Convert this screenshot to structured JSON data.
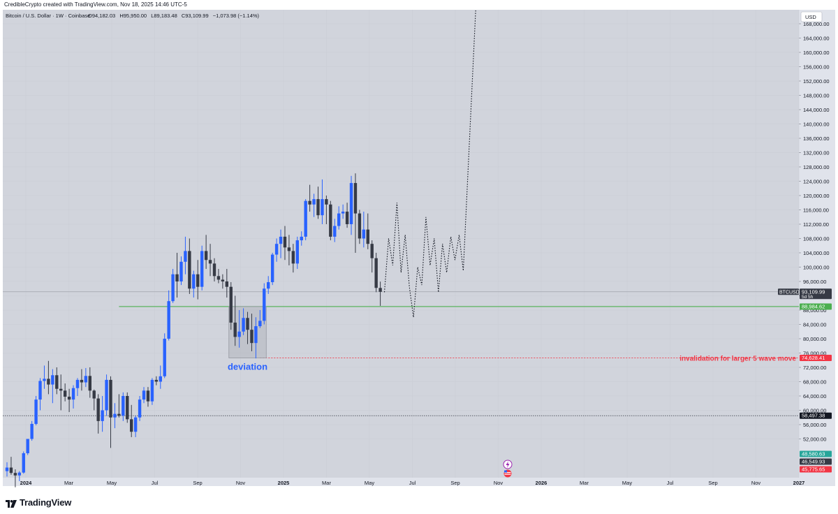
{
  "header": {
    "credit": "CredibleCrypto created with TradingView.com, Nov 18, 2025 14:46 UTC-5"
  },
  "legend": {
    "symbol": "Bitcoin / U.S. Dollar · 1W · Coinbase",
    "o_label": "O",
    "o": "94,182.03",
    "h_label": "H",
    "h": "95,950.00",
    "l_label": "L",
    "l": "89,183.48",
    "c_label": "C",
    "c": "93,109.99",
    "change": "−1,073.98 (−1.14%)"
  },
  "currency": "USD",
  "footer": {
    "brand": "TradingView"
  },
  "colors": {
    "background": "#d1d4dc",
    "up": "#2962ff",
    "down": "#363a45",
    "support_line": "#4caf50",
    "invalidation": "#f23645",
    "deviation_box": "#b2b5be"
  },
  "chart_data": {
    "type": "candlestick",
    "interval": "1W",
    "ylim": [
      44000,
      170000
    ],
    "ytick_labels": [
      "52,000.00",
      "56,000.00",
      "60,000.00",
      "64,000.00",
      "68,000.00",
      "72,000.00",
      "76,000.00",
      "80,000.00",
      "84,000.00",
      "88,000.00",
      "92,000.00",
      "96,000.00",
      "100,000.00",
      "104,000.00",
      "108,000.00",
      "112,000.00",
      "116,000.00",
      "120,000.00",
      "124,000.00",
      "128,000.00",
      "132,000.00",
      "136,000.00",
      "140,000.00",
      "144,000.00",
      "148,000.00",
      "152,000.00",
      "156,000.00",
      "160,000.00",
      "164,000.00",
      "168,000.00"
    ],
    "x_labels": [
      {
        "label": "2024",
        "bold": true
      },
      {
        "label": "Mar"
      },
      {
        "label": "May"
      },
      {
        "label": "Jul"
      },
      {
        "label": "Sep"
      },
      {
        "label": "Nov"
      },
      {
        "label": "2025",
        "bold": true
      },
      {
        "label": "Mar"
      },
      {
        "label": "May"
      },
      {
        "label": "Jul"
      },
      {
        "label": "Sep"
      },
      {
        "label": "Nov"
      },
      {
        "label": "2026",
        "bold": true
      },
      {
        "label": "Mar"
      },
      {
        "label": "May"
      },
      {
        "label": "Jul"
      },
      {
        "label": "Sep"
      },
      {
        "label": "Nov"
      },
      {
        "label": "2027",
        "bold": true
      }
    ],
    "candles": [
      {
        "o": 43000,
        "h": 45500,
        "l": 41500,
        "c": 44000
      },
      {
        "o": 44000,
        "h": 47000,
        "l": 42000,
        "c": 42500
      },
      {
        "o": 42500,
        "h": 43500,
        "l": 38500,
        "c": 41800
      },
      {
        "o": 41800,
        "h": 43000,
        "l": 40200,
        "c": 42600
      },
      {
        "o": 42600,
        "h": 48500,
        "l": 42300,
        "c": 48000
      },
      {
        "o": 48000,
        "h": 52000,
        "l": 47500,
        "c": 52000
      },
      {
        "o": 52000,
        "h": 57000,
        "l": 51500,
        "c": 56200
      },
      {
        "o": 56200,
        "h": 64000,
        "l": 55800,
        "c": 63000
      },
      {
        "o": 63000,
        "h": 69000,
        "l": 60000,
        "c": 68200
      },
      {
        "o": 68200,
        "h": 72500,
        "l": 66000,
        "c": 68800
      },
      {
        "o": 68800,
        "h": 73800,
        "l": 64500,
        "c": 67200
      },
      {
        "o": 67200,
        "h": 71500,
        "l": 62000,
        "c": 69800
      },
      {
        "o": 69800,
        "h": 72000,
        "l": 64500,
        "c": 66000
      },
      {
        "o": 66000,
        "h": 70000,
        "l": 60000,
        "c": 65500
      },
      {
        "o": 65500,
        "h": 67500,
        "l": 62500,
        "c": 63800
      },
      {
        "o": 63800,
        "h": 66000,
        "l": 59500,
        "c": 63000
      },
      {
        "o": 63000,
        "h": 67000,
        "l": 60500,
        "c": 66200
      },
      {
        "o": 66200,
        "h": 69000,
        "l": 64000,
        "c": 68500
      },
      {
        "o": 68500,
        "h": 71500,
        "l": 65500,
        "c": 67800
      },
      {
        "o": 67800,
        "h": 71800,
        "l": 66500,
        "c": 69600
      },
      {
        "o": 69600,
        "h": 72000,
        "l": 63500,
        "c": 65500
      },
      {
        "o": 65500,
        "h": 65800,
        "l": 60000,
        "c": 63300
      },
      {
        "o": 63300,
        "h": 64500,
        "l": 53500,
        "c": 57000
      },
      {
        "o": 57000,
        "h": 64000,
        "l": 54000,
        "c": 60000
      },
      {
        "o": 60000,
        "h": 70000,
        "l": 58500,
        "c": 68500
      },
      {
        "o": 68500,
        "h": 69500,
        "l": 49500,
        "c": 58000
      },
      {
        "o": 58000,
        "h": 62000,
        "l": 55000,
        "c": 59000
      },
      {
        "o": 59000,
        "h": 64500,
        "l": 58000,
        "c": 58500
      },
      {
        "o": 58500,
        "h": 65000,
        "l": 57000,
        "c": 64000
      },
      {
        "o": 64000,
        "h": 65000,
        "l": 56500,
        "c": 57500
      },
      {
        "o": 57500,
        "h": 61500,
        "l": 52500,
        "c": 54000
      },
      {
        "o": 54000,
        "h": 58500,
        "l": 52500,
        "c": 58000
      },
      {
        "o": 58000,
        "h": 64000,
        "l": 57000,
        "c": 63000
      },
      {
        "o": 63000,
        "h": 66500,
        "l": 62000,
        "c": 65500
      },
      {
        "o": 65500,
        "h": 66500,
        "l": 61000,
        "c": 62500
      },
      {
        "o": 62500,
        "h": 69000,
        "l": 61500,
        "c": 68500
      },
      {
        "o": 68500,
        "h": 69500,
        "l": 67000,
        "c": 68000
      },
      {
        "o": 68000,
        "h": 72500,
        "l": 66000,
        "c": 69500
      },
      {
        "o": 69500,
        "h": 81500,
        "l": 69000,
        "c": 80000
      },
      {
        "o": 80000,
        "h": 93500,
        "l": 79500,
        "c": 90500
      },
      {
        "o": 90500,
        "h": 99500,
        "l": 90000,
        "c": 98000
      },
      {
        "o": 98000,
        "h": 104000,
        "l": 91500,
        "c": 96000
      },
      {
        "o": 96000,
        "h": 103000,
        "l": 95000,
        "c": 101500
      },
      {
        "o": 101500,
        "h": 108500,
        "l": 98000,
        "c": 104500
      },
      {
        "o": 104500,
        "h": 108000,
        "l": 92500,
        "c": 94000
      },
      {
        "o": 94000,
        "h": 99000,
        "l": 91500,
        "c": 98000
      },
      {
        "o": 98000,
        "h": 102000,
        "l": 91000,
        "c": 94500
      },
      {
        "o": 94500,
        "h": 106000,
        "l": 93500,
        "c": 104500
      },
      {
        "o": 104500,
        "h": 109000,
        "l": 99500,
        "c": 102000
      },
      {
        "o": 102000,
        "h": 106500,
        "l": 97500,
        "c": 101000
      },
      {
        "o": 101000,
        "h": 102500,
        "l": 96000,
        "c": 97500
      },
      {
        "o": 97500,
        "h": 99500,
        "l": 95500,
        "c": 96500
      },
      {
        "o": 96500,
        "h": 98000,
        "l": 94000,
        "c": 96000
      },
      {
        "o": 96000,
        "h": 99500,
        "l": 91500,
        "c": 94500
      },
      {
        "o": 94500,
        "h": 95800,
        "l": 82500,
        "c": 84500
      },
      {
        "o": 84500,
        "h": 92000,
        "l": 78000,
        "c": 80500
      },
      {
        "o": 80500,
        "h": 88000,
        "l": 77500,
        "c": 82000
      },
      {
        "o": 82000,
        "h": 88500,
        "l": 81000,
        "c": 85800
      },
      {
        "o": 85800,
        "h": 87500,
        "l": 78500,
        "c": 82500
      },
      {
        "o": 82500,
        "h": 87000,
        "l": 76500,
        "c": 78800
      },
      {
        "o": 78800,
        "h": 86000,
        "l": 74500,
        "c": 83500
      },
      {
        "o": 83500,
        "h": 88000,
        "l": 83000,
        "c": 85000
      },
      {
        "o": 85000,
        "h": 95500,
        "l": 84000,
        "c": 94000
      },
      {
        "o": 94000,
        "h": 97500,
        "l": 92500,
        "c": 95800
      },
      {
        "o": 95800,
        "h": 104000,
        "l": 95000,
        "c": 103500
      },
      {
        "o": 103500,
        "h": 108000,
        "l": 101500,
        "c": 106500
      },
      {
        "o": 106500,
        "h": 110500,
        "l": 102500,
        "c": 108500
      },
      {
        "o": 108500,
        "h": 111500,
        "l": 102000,
        "c": 105500
      },
      {
        "o": 105500,
        "h": 109000,
        "l": 100500,
        "c": 104500
      },
      {
        "o": 104500,
        "h": 106500,
        "l": 98500,
        "c": 101000
      },
      {
        "o": 101000,
        "h": 108500,
        "l": 99500,
        "c": 107500
      },
      {
        "o": 107500,
        "h": 110000,
        "l": 106000,
        "c": 108500
      },
      {
        "o": 108500,
        "h": 119000,
        "l": 107500,
        "c": 118500
      },
      {
        "o": 118500,
        "h": 123000,
        "l": 115500,
        "c": 117500
      },
      {
        "o": 117500,
        "h": 120500,
        "l": 114000,
        "c": 119000
      },
      {
        "o": 119000,
        "h": 122500,
        "l": 113500,
        "c": 114500
      },
      {
        "o": 114500,
        "h": 124500,
        "l": 112000,
        "c": 119000
      },
      {
        "o": 119000,
        "h": 120000,
        "l": 112000,
        "c": 117500
      },
      {
        "o": 117500,
        "h": 118500,
        "l": 107500,
        "c": 108500
      },
      {
        "o": 108500,
        "h": 113500,
        "l": 107000,
        "c": 111500
      },
      {
        "o": 111500,
        "h": 117000,
        "l": 110500,
        "c": 115000
      },
      {
        "o": 115000,
        "h": 117500,
        "l": 113500,
        "c": 115500
      },
      {
        "o": 115500,
        "h": 118000,
        "l": 111000,
        "c": 112000
      },
      {
        "o": 112000,
        "h": 125500,
        "l": 109000,
        "c": 123500
      },
      {
        "o": 123500,
        "h": 126200,
        "l": 104000,
        "c": 115000
      },
      {
        "o": 115000,
        "h": 116000,
        "l": 106500,
        "c": 108000
      },
      {
        "o": 108000,
        "h": 115500,
        "l": 105500,
        "c": 110500
      },
      {
        "o": 110500,
        "h": 115000,
        "l": 105000,
        "c": 106500
      },
      {
        "o": 106500,
        "h": 107500,
        "l": 98500,
        "c": 102500
      },
      {
        "o": 102500,
        "h": 104000,
        "l": 93000,
        "c": 94200
      },
      {
        "o": 94182.03,
        "h": 95950,
        "l": 89183.48,
        "c": 93109.99
      }
    ],
    "projection_path": [
      {
        "i": 91,
        "p": 93000
      },
      {
        "i": 92,
        "p": 108000
      },
      {
        "i": 93,
        "p": 100500
      },
      {
        "i": 94,
        "p": 118000
      },
      {
        "i": 95,
        "p": 98500
      },
      {
        "i": 96,
        "p": 109000
      },
      {
        "i": 97,
        "p": 94500
      },
      {
        "i": 98,
        "p": 86000
      },
      {
        "i": 99,
        "p": 100000
      },
      {
        "i": 100,
        "p": 95000
      },
      {
        "i": 101,
        "p": 114000
      },
      {
        "i": 102,
        "p": 100500
      },
      {
        "i": 103,
        "p": 108000
      },
      {
        "i": 104,
        "p": 93000
      },
      {
        "i": 105,
        "p": 106500
      },
      {
        "i": 106,
        "p": 98500
      },
      {
        "i": 107,
        "p": 108500
      },
      {
        "i": 108,
        "p": 102000
      },
      {
        "i": 109,
        "p": 109000
      },
      {
        "i": 110,
        "p": 99000
      },
      {
        "i": 113,
        "p": 172000
      }
    ],
    "horizontal_levels": [
      {
        "price": 93109.99,
        "label": "93,109.99",
        "sub": "5d 5h",
        "tag": "BTCUSD",
        "style": "current",
        "from_index": 0
      },
      {
        "price": 88984.62,
        "label": "88,984.62",
        "style": "support",
        "from_index": 27
      },
      {
        "price": 74628.41,
        "label": "74,628.41",
        "style": "invalidation",
        "from_index": 61
      },
      {
        "price": 58497.38,
        "label": "58,497.38",
        "style": "dashed",
        "from_index": 0
      }
    ],
    "price_tags": [
      {
        "price": 49500,
        "label": "48,580.63",
        "color": "#26a69a"
      },
      {
        "price": 46900,
        "label": "46,549.93",
        "color": "#363a45"
      },
      {
        "price": 44300,
        "label": "45,775.65",
        "color": "#f23645"
      }
    ],
    "deviation_box": {
      "i0": 54,
      "i1": 62,
      "p0": 74628.41,
      "p1": 88984.62
    },
    "annotations": [
      {
        "text": "deviation",
        "near": "deviation_box"
      },
      {
        "text": "invalidation for larger 5 wave move",
        "near": "invalidation"
      }
    ]
  }
}
